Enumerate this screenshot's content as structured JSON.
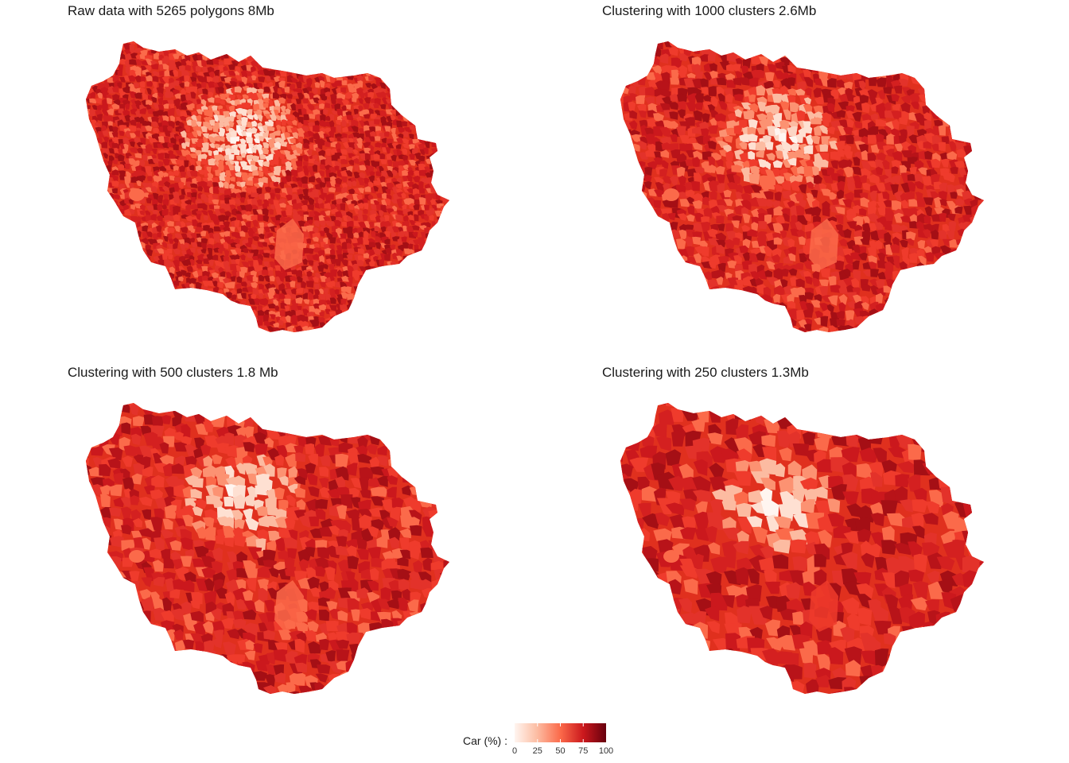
{
  "panels": [
    {
      "title": "Raw data with 5265 polygons 8Mb",
      "polygons": 5265,
      "clusters": null,
      "size": "8Mb"
    },
    {
      "title": "Clustering with 1000 clusters 2.6Mb",
      "polygons": null,
      "clusters": 1000,
      "size": "2.6Mb"
    },
    {
      "title": "Clustering with 500 clusters 1.8 Mb",
      "polygons": null,
      "clusters": 500,
      "size": "1.8 Mb"
    },
    {
      "title": "Clustering with 250 clusters 1.3Mb",
      "polygons": null,
      "clusters": 250,
      "size": "1.3Mb"
    }
  ],
  "legend": {
    "title": "Car (%) :",
    "ticks": [
      "0",
      "25",
      "50",
      "75",
      "100"
    ],
    "colors": [
      "#fff5f0",
      "#fcbba1",
      "#fb6a4a",
      "#cb181d",
      "#67000d"
    ]
  },
  "colors": {
    "low": "#fff5f0",
    "mid_low": "#fcbba1",
    "mid": "#fb6a4a",
    "high": "#e0301e",
    "very_high": "#a50f15"
  }
}
